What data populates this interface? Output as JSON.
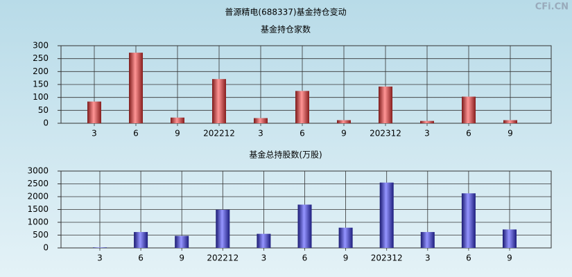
{
  "title": "普源精电(688337)基金持仓变动",
  "watermark": "CFi.CN",
  "chart_data": [
    {
      "type": "bar",
      "title": "基金持仓家数",
      "color": "#e03030",
      "categories": [
        "3",
        "6",
        "9",
        "202212",
        "3",
        "6",
        "9",
        "202312",
        "3",
        "6",
        "9"
      ],
      "values": [
        84,
        273,
        22,
        171,
        20,
        125,
        12,
        142,
        9,
        103,
        12
      ],
      "ylim": [
        0,
        300
      ],
      "yticks": [
        0,
        50,
        100,
        150,
        200,
        250,
        300
      ],
      "grid": true
    },
    {
      "type": "bar",
      "title": "基金总持股数(万股)",
      "color": "#3030d0",
      "categories": [
        "3",
        "6",
        "9",
        "202212",
        "3",
        "6",
        "9",
        "202312",
        "3",
        "6",
        "9"
      ],
      "values": [
        20,
        620,
        470,
        1490,
        550,
        1690,
        790,
        2550,
        620,
        2130,
        720
      ],
      "ylim": [
        0,
        3000
      ],
      "yticks": [
        0,
        500,
        1000,
        1500,
        2000,
        2500,
        3000
      ],
      "grid": true
    }
  ]
}
